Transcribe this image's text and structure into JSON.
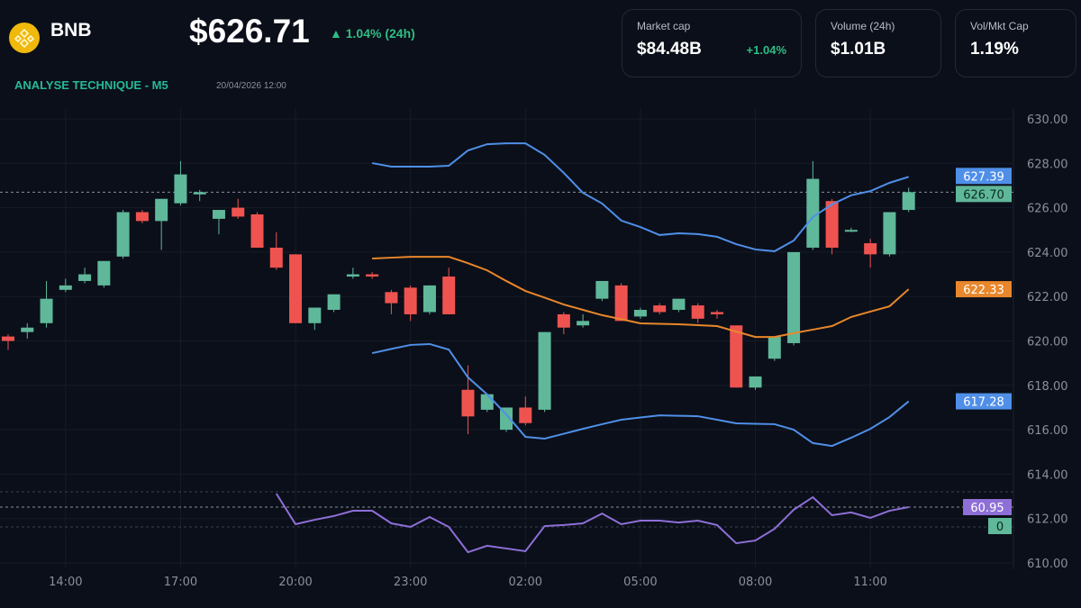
{
  "header": {
    "symbol": "BNB",
    "logo_icon": "bnb-logo-icon",
    "price": "$626.71",
    "change": "▲ 1.04% (24h)",
    "section_title": "ANALYSE TECHNIQUE - M5",
    "timestamp": "20/04/2026 12:00"
  },
  "cards": [
    {
      "label": "Market cap",
      "value": "$84.48B",
      "change": "+1.04%"
    },
    {
      "label": "Volume (24h)",
      "value": "$1.01B"
    },
    {
      "label": "Vol/Mkt Cap",
      "value": "1.19%"
    }
  ],
  "colors": {
    "up": "#5fb89a",
    "down": "#ef5350",
    "upper_band": "#4f8fe8",
    "middle_band": "#e8872b",
    "lower_band": "#4f8fe8",
    "oscillator": "#8e6fd8",
    "accent": "#26b99a"
  },
  "chart_data": {
    "type": "candlestick",
    "interval_minutes": 30,
    "first_candle_time": "12:30",
    "ylim": [
      610,
      630
    ],
    "y_ticks": [
      "630.00",
      "628.00",
      "626.00",
      "624.00",
      "622.00",
      "620.00",
      "618.00",
      "616.00",
      "614.00",
      "612.00",
      "610.00"
    ],
    "x_ticks": [
      {
        "label": "14:00",
        "index": 3
      },
      {
        "label": "17:00",
        "index": 9
      },
      {
        "label": "20:00",
        "index": 15
      },
      {
        "label": "23:00",
        "index": 21
      },
      {
        "label": "02:00",
        "index": 27
      },
      {
        "label": "05:00",
        "index": 33
      },
      {
        "label": "08:00",
        "index": 39
      },
      {
        "label": "11:00",
        "index": 45
      }
    ],
    "candles": [
      [
        620.2,
        620.3,
        619.6,
        620.0
      ],
      [
        620.4,
        620.8,
        620.1,
        620.6
      ],
      [
        620.8,
        622.7,
        620.6,
        621.9
      ],
      [
        622.3,
        622.8,
        622.2,
        622.5
      ],
      [
        622.7,
        623.3,
        622.6,
        623.0
      ],
      [
        622.5,
        623.6,
        622.4,
        623.6
      ],
      [
        623.8,
        625.9,
        623.7,
        625.8
      ],
      [
        625.8,
        625.9,
        625.3,
        625.4
      ],
      [
        625.4,
        626.4,
        624.1,
        626.4
      ],
      [
        626.2,
        628.1,
        626.1,
        627.5
      ],
      [
        626.6,
        626.8,
        626.3,
        626.7
      ],
      [
        625.5,
        625.9,
        624.8,
        625.9
      ],
      [
        626.0,
        626.4,
        625.5,
        625.6
      ],
      [
        625.7,
        625.8,
        624.2,
        624.2
      ],
      [
        624.2,
        624.9,
        623.2,
        623.3
      ],
      [
        623.9,
        623.9,
        620.8,
        620.8
      ],
      [
        620.8,
        621.5,
        620.5,
        621.5
      ],
      [
        621.4,
        622.1,
        621.3,
        622.1
      ],
      [
        622.9,
        623.3,
        622.8,
        623.0
      ],
      [
        623.0,
        623.1,
        622.8,
        622.9
      ],
      [
        622.2,
        622.3,
        621.2,
        621.7
      ],
      [
        622.4,
        622.5,
        620.9,
        621.2
      ],
      [
        621.3,
        622.5,
        621.2,
        622.5
      ],
      [
        622.9,
        623.3,
        621.2,
        621.2
      ],
      [
        617.8,
        618.9,
        615.8,
        616.6
      ],
      [
        616.9,
        617.6,
        616.8,
        617.6
      ],
      [
        616.0,
        617.0,
        615.9,
        617.0
      ],
      [
        617.0,
        617.5,
        616.2,
        616.3
      ],
      [
        616.9,
        620.4,
        616.8,
        620.4
      ],
      [
        621.2,
        621.3,
        620.3,
        620.6
      ],
      [
        620.7,
        621.2,
        620.6,
        620.9
      ],
      [
        621.9,
        622.7,
        621.8,
        622.7
      ],
      [
        622.5,
        622.6,
        620.9,
        620.9
      ],
      [
        621.1,
        621.5,
        621.0,
        621.4
      ],
      [
        621.6,
        621.7,
        621.2,
        621.3
      ],
      [
        621.4,
        621.9,
        621.3,
        621.9
      ],
      [
        621.6,
        621.7,
        620.8,
        621.0
      ],
      [
        621.3,
        621.4,
        621.0,
        621.2
      ],
      [
        620.7,
        620.7,
        617.9,
        617.9
      ],
      [
        617.9,
        618.4,
        617.8,
        618.4
      ],
      [
        619.2,
        620.2,
        619.1,
        620.2
      ],
      [
        619.9,
        624.0,
        619.8,
        624.0
      ],
      [
        624.2,
        628.1,
        624.1,
        627.3
      ],
      [
        626.3,
        626.4,
        623.9,
        624.2
      ],
      [
        625.0,
        625.1,
        624.9,
        625.0
      ],
      [
        624.4,
        624.6,
        623.3,
        623.9
      ],
      [
        623.9,
        625.8,
        623.8,
        625.8
      ],
      [
        625.9,
        626.9,
        625.8,
        626.7
      ]
    ],
    "bands_start_index": 19,
    "upper_band": [
      628.01,
      627.85,
      627.85,
      627.85,
      627.89,
      628.58,
      628.86,
      628.9,
      628.9,
      628.38,
      627.57,
      626.67,
      626.19,
      625.42,
      625.13,
      624.77,
      624.85,
      624.81,
      624.69,
      624.36,
      624.12,
      624.04,
      624.52,
      625.58,
      626.15,
      626.56,
      626.75,
      627.12,
      627.39
    ],
    "middle_band": [
      623.71,
      623.75,
      623.79,
      623.79,
      623.79,
      623.5,
      623.18,
      622.7,
      622.25,
      621.95,
      621.64,
      621.4,
      621.16,
      620.98,
      620.79,
      620.77,
      620.75,
      620.71,
      620.67,
      620.42,
      620.18,
      620.18,
      620.35,
      620.51,
      620.67,
      621.08,
      621.32,
      621.56,
      622.33
    ],
    "lower_band": [
      619.45,
      619.64,
      619.82,
      619.86,
      619.61,
      618.36,
      617.59,
      616.69,
      615.68,
      615.6,
      615.82,
      616.04,
      616.25,
      616.45,
      616.55,
      616.65,
      616.63,
      616.61,
      616.45,
      616.29,
      616.27,
      616.25,
      616.0,
      615.4,
      615.27,
      615.64,
      616.04,
      616.57,
      617.28
    ],
    "oscillator_start_index": 14,
    "oscillator": [
      68.9,
      50.9,
      53.5,
      55.7,
      58.8,
      58.8,
      51.4,
      49.3,
      55.1,
      49.3,
      34.4,
      38.2,
      36.6,
      35.0,
      49.8,
      50.4,
      51.4,
      57.2,
      50.9,
      53.0,
      53.0,
      51.9,
      53.0,
      50.4,
      39.7,
      41.3,
      48.2,
      59.4,
      66.8,
      56.2,
      57.8,
      54.6,
      58.8,
      60.95
    ],
    "labels": {
      "upper": "627.39",
      "last": "626.70",
      "middle": "622.33",
      "lower": "617.28",
      "oscillator": "60.95",
      "secondary": "0"
    }
  }
}
